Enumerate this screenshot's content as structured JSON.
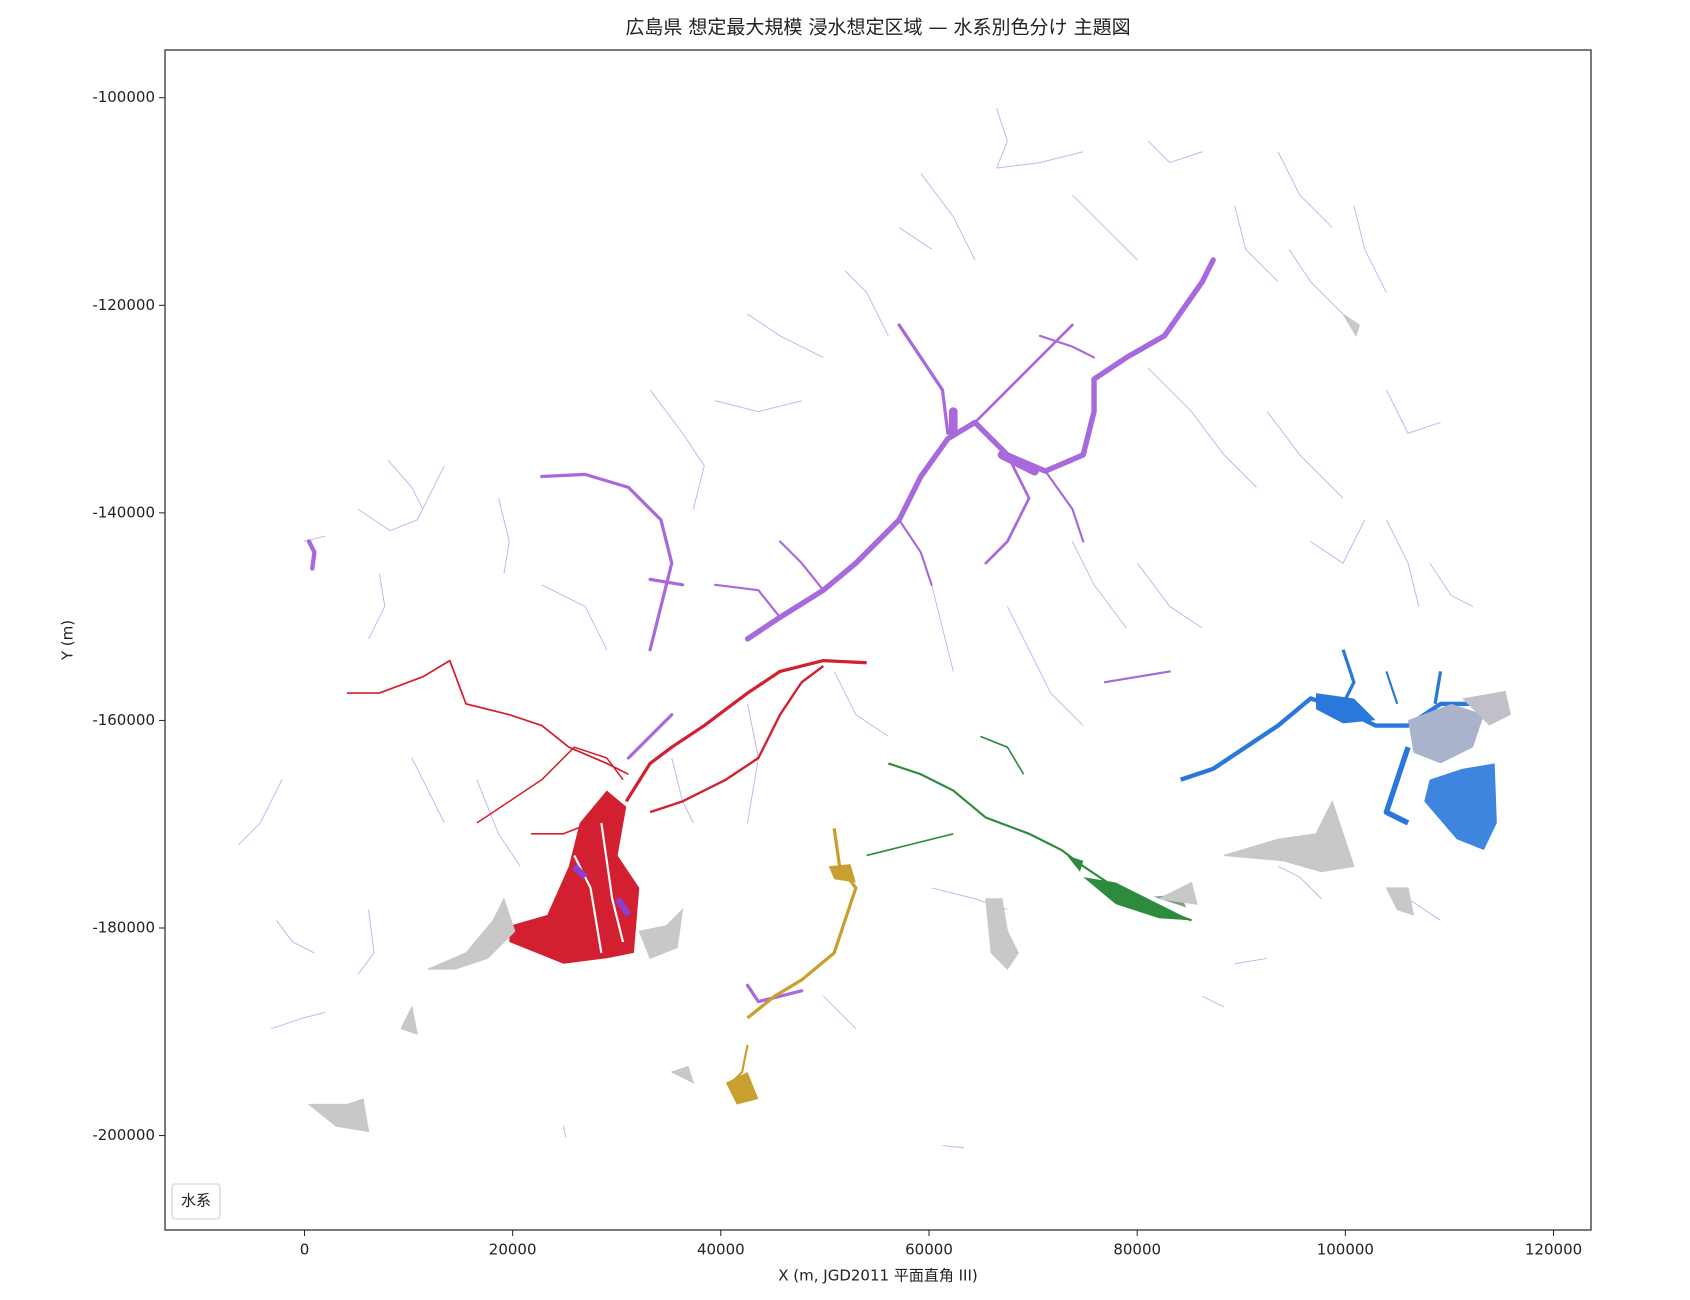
{
  "chart_data": {
    "type": "map",
    "title": "広島県 想定最大規模 浸水想定区域 — 水系別色分け 主題図",
    "x_label": "X (m, JGD2011 平面直角 III)",
    "y_label": "Y (m)",
    "xlim": [
      -13400,
      123600
    ],
    "ylim": [
      -209100,
      -95400
    ],
    "xticks": [
      0,
      20000,
      40000,
      60000,
      80000,
      100000,
      120000
    ],
    "yticks": [
      -200000,
      -180000,
      -160000,
      -140000,
      -120000,
      -100000
    ],
    "legend_title": "水系",
    "legend_position": "lower left"
  }
}
